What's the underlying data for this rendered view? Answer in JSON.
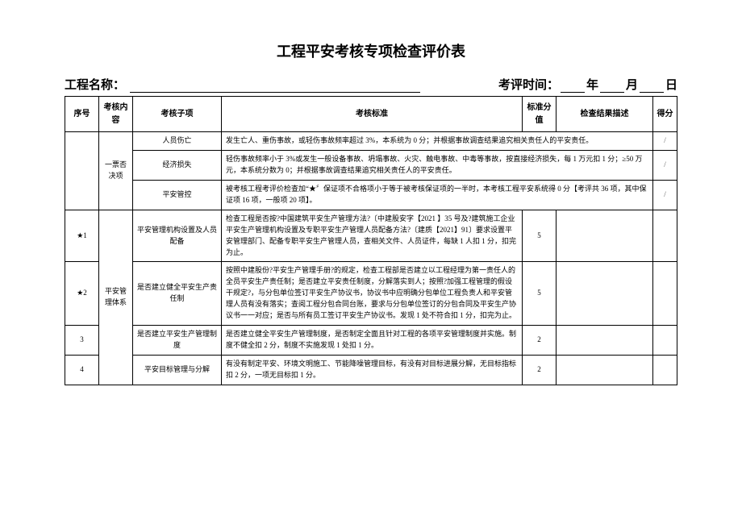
{
  "title": "工程平安考核专项检查评价表",
  "meta": {
    "projectLabel": "工程名称：",
    "dateLabel": "考评时间：",
    "year": "年",
    "month": "月",
    "day": "日"
  },
  "headers": {
    "seq": "序号",
    "category": "考核内容",
    "subitem": "考核子项",
    "standard": "考核标准",
    "stdScore": "标准分值",
    "resultDesc": "检查结果描述",
    "score": "得分"
  },
  "vetoCategory": "一票否决项",
  "vetoRows": [
    {
      "sub": "人员伤亡",
      "standard": "发生亡人、重伤事故，或轻伤事故频率超过 3%，本系统为 0 分；并根据事故调查结果追究相关责任人的平安责任。",
      "slash": "/"
    },
    {
      "sub": "经济损失",
      "standard": "轻伤事故频率小于 3%或发生一般设备事故、坍塌事故、火灾、触电事故、中毒等事故，按直接经济损失，每 1 万元扣 1 分；≥50 万元，本系统分数为 0；并根据事故调查结果追究相关责任人的平安责任。",
      "slash": "/"
    },
    {
      "sub": "平安管控",
      "standard": "被考核工程考评价检查加“★〞保证项不合格项小于等于被考核保证项的一半时，本考核工程平安系统得 0 分【考评共 36 项，其中保证项 16 项，一般项 20 项】。",
      "slash": "/"
    }
  ],
  "mgmtCategory": "平安管理体系",
  "rows": [
    {
      "seq": "★1",
      "sub": "平安管理机构设置及人员配备",
      "standard": "检查工程是否按?中国建筑平安生产管理方法?〔中建股安字【2021 】35 号及?建筑施工企业平安生产管理机构设置及专职平安生产管理人员配备方法?〔建质【2021】91〕要求设置平安管理部门、配备专职平安生产管理人员，查相关文件、人员证件，每缺 1 人扣 1 分，扣完为止。",
      "score": "5"
    },
    {
      "seq": "★2",
      "sub": "是否建立健全平安生产责任制",
      "standard": "按照中建股份?平安生产管理手册?的规定，检查工程部是否建立以工程经理为第一责任人的全员平安生产责任制；是否建立平安责任制度，分解落实到人；按照?加强工程管理的假设干规定?，与分包单位签订平安生产协议书，协议书中应明确分包单位工程负责人和平安管理人员有没有落实；查阅工程分包合同台账，要求与分包单位签订的分包合同及平安生产协议书一一对应；是否与所有员工签订平安生产协议书。发现 1 处不符合扣 1 分，扣完为止。",
      "score": "5"
    },
    {
      "seq": "3",
      "sub": "是否建立平安生产管理制度",
      "standard": "是否建立健全平安生产管理制度，是否制定全面且针对工程的各项平安管理制度并实施。制度不健全扣 2 分，制度不实施发现 1 处扣 1 分。",
      "score": "2"
    },
    {
      "seq": "4",
      "sub": "平安目标管理与分解",
      "standard": "有没有制定平安、环境文明施工、节能降噪管理目标，有没有对目标进展分解，无目标指标扣 2 分，一项无目标扣 1 分。",
      "score": "2"
    }
  ]
}
